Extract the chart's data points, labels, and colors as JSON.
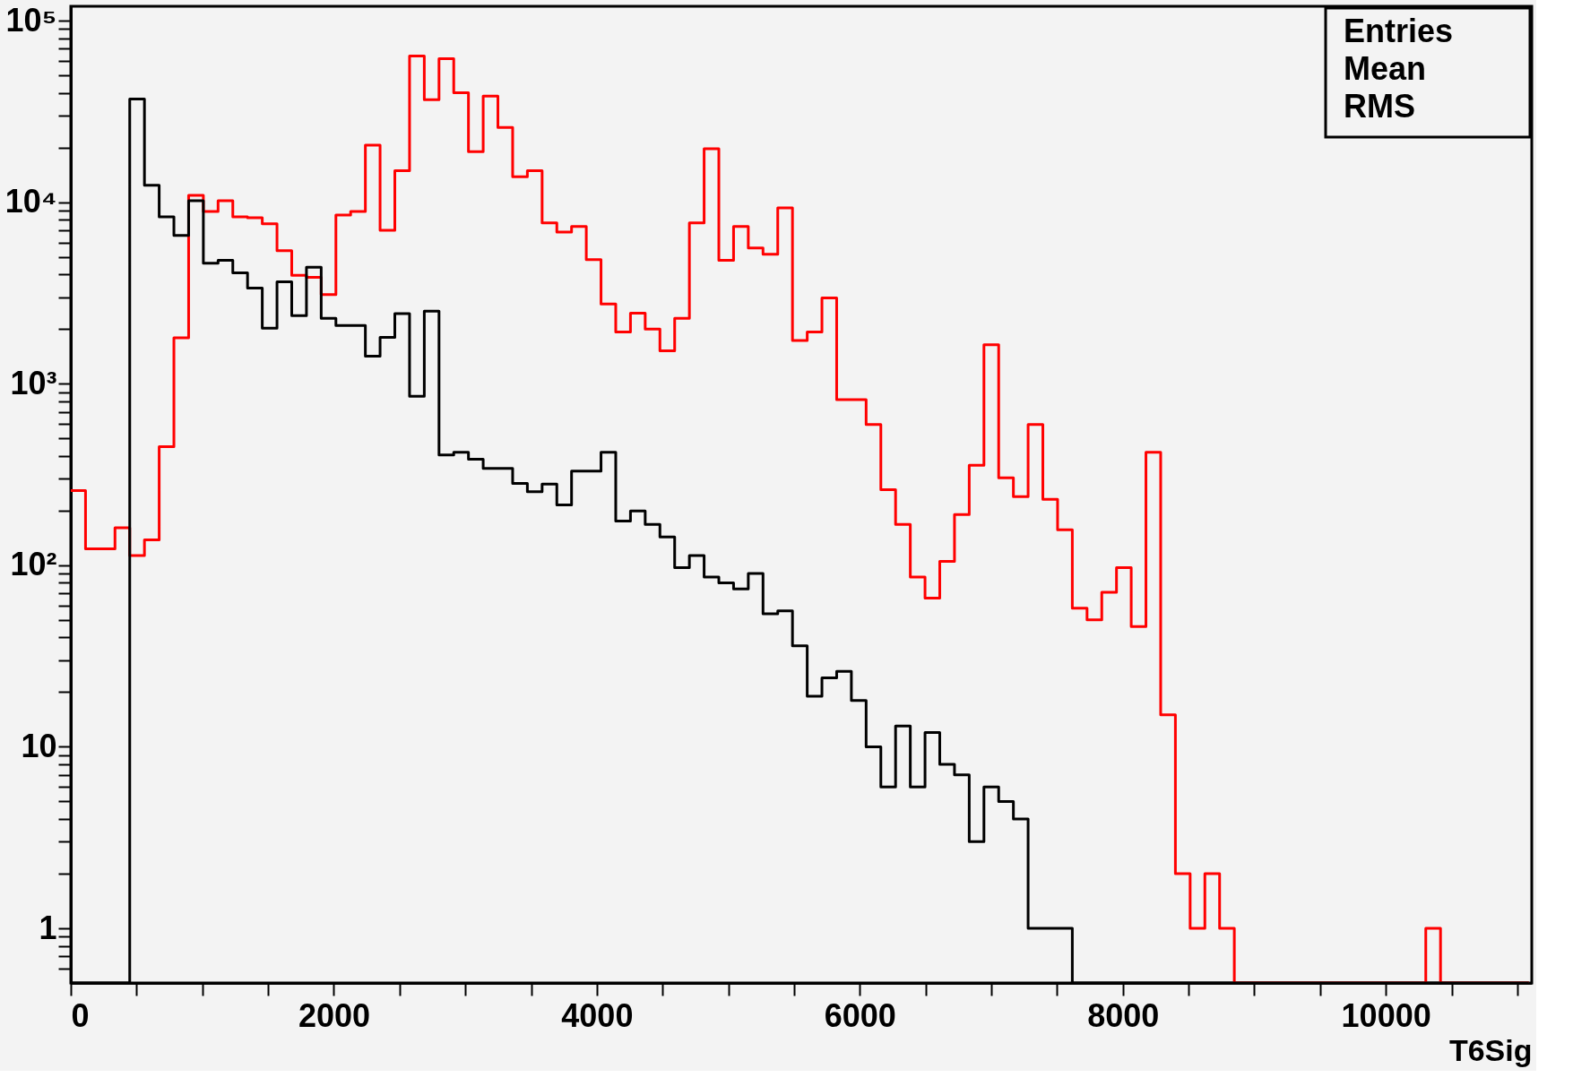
{
  "chart_data": {
    "type": "histogram",
    "xlabel": "T6Sig",
    "log": true,
    "grid": false,
    "bins": [
      0,
      112,
      224,
      336,
      448,
      560,
      672,
      784,
      896,
      1008,
      1120,
      1232,
      1344,
      1456,
      1568,
      1680,
      1792,
      1904,
      2016,
      2128,
      2240,
      2352,
      2464,
      2576,
      2688,
      2800,
      2912,
      3024,
      3136,
      3248,
      3360,
      3472,
      3584,
      3696,
      3808,
      3920,
      4032,
      4144,
      4256,
      4368,
      4480,
      4592,
      4704,
      4816,
      4928,
      5040,
      5152,
      5264,
      5376,
      5488,
      5600,
      5712,
      5824,
      5936,
      6048,
      6160,
      6272,
      6384,
      6496,
      6608,
      6720,
      6832,
      6944,
      7056,
      7168,
      7280,
      7392,
      7504,
      7616,
      7728,
      7840,
      7952,
      8064,
      8176,
      8288,
      8400,
      8512,
      8624,
      8736,
      8848,
      8960,
      9072,
      9184,
      9296,
      9408,
      9520,
      9632,
      9744,
      9856,
      9968,
      10080,
      10192,
      10304,
      10416,
      10528,
      10640,
      10752,
      10864,
      10976,
      11088
    ],
    "series": [
      {
        "color": "#ff0000",
        "values": [
          258,
          123,
          123,
          161,
          113,
          138,
          450,
          1790,
          10900,
          8900,
          10200,
          8300,
          8200,
          7600,
          5400,
          3950,
          3850,
          3100,
          8500,
          8900,
          20600,
          7000,
          14900,
          63900,
          36700,
          61700,
          40100,
          19000,
          38400,
          25800,
          13800,
          14900,
          7700,
          6850,
          7350,
          4820,
          2750,
          1930,
          2450,
          2000,
          1520,
          2290,
          7700,
          19700,
          4780,
          7350,
          5600,
          5170,
          9300,
          1730,
          1930,
          2970,
          817,
          817,
          596,
          261,
          168,
          86,
          66,
          105,
          190,
          355,
          1640,
          303,
          239,
          596,
          231,
          157,
          58,
          50,
          71,
          97,
          46,
          419,
          15,
          2,
          1,
          2,
          1,
          null,
          null,
          null,
          null,
          null,
          null,
          null,
          null,
          null,
          null,
          null,
          null,
          null,
          1,
          null,
          null,
          null,
          null,
          null,
          null
        ]
      },
      {
        "color": "#000000",
        "values": [
          null,
          null,
          null,
          null,
          37000,
          12400,
          8300,
          6560,
          10200,
          4610,
          4780,
          4080,
          3360,
          2020,
          3640,
          2370,
          4380,
          2290,
          2090,
          2090,
          1420,
          1800,
          2430,
          853,
          2510,
          405,
          419,
          384,
          342,
          342,
          282,
          254,
          280,
          215,
          330,
          330,
          419,
          175,
          199,
          168,
          143,
          97,
          113,
          86,
          80,
          74,
          90,
          54,
          56,
          36,
          19,
          24,
          26,
          18,
          10,
          6,
          13,
          6,
          12,
          8,
          7,
          3,
          6,
          5,
          4,
          1,
          1,
          1,
          null,
          null,
          null,
          null,
          null,
          null,
          null,
          null,
          null,
          null,
          null,
          null,
          null,
          null,
          null,
          null,
          null,
          null,
          null,
          null,
          null,
          null,
          null,
          null,
          null,
          null,
          null,
          null,
          null,
          null,
          null
        ]
      }
    ],
    "xlim": [
      0,
      11110
    ],
    "xticks": [
      0,
      {
        "value": 500,
        "label": null
      },
      {
        "value": 1000,
        "label": null
      },
      {
        "value": 1500,
        "label": null
      },
      2000,
      {
        "value": 2500,
        "label": null
      },
      {
        "value": 3000,
        "label": null
      },
      {
        "value": 3500,
        "label": null
      },
      4000,
      {
        "value": 4500,
        "label": null
      },
      {
        "value": 5000,
        "label": null
      },
      {
        "value": 5500,
        "label": null
      },
      6000,
      {
        "value": 6500,
        "label": null
      },
      {
        "value": 7000,
        "label": null
      },
      {
        "value": 7500,
        "label": null
      },
      8000,
      {
        "value": 8500,
        "label": null
      },
      {
        "value": 9000,
        "label": null
      },
      {
        "value": 9500,
        "label": null
      },
      10000,
      {
        "value": 10500,
        "label": null
      },
      {
        "value": 11000,
        "label": null
      }
    ],
    "ylim": [
      0.5,
      120000
    ],
    "yticks": [
      {
        "value": 0.6,
        "label": null
      },
      {
        "value": 0.7,
        "label": null
      },
      {
        "value": 0.8,
        "label": null
      },
      {
        "value": 0.9,
        "label": null
      },
      1,
      {
        "value": 2,
        "label": null
      },
      {
        "value": 3,
        "label": null
      },
      {
        "value": 4,
        "label": null
      },
      {
        "value": 5,
        "label": null
      },
      {
        "value": 6,
        "label": null
      },
      {
        "value": 7,
        "label": null
      },
      {
        "value": 8,
        "label": null
      },
      {
        "value": 9,
        "label": null
      },
      10,
      {
        "value": 20,
        "label": null
      },
      {
        "value": 30,
        "label": null
      },
      {
        "value": 40,
        "label": null
      },
      {
        "value": 50,
        "label": null
      },
      {
        "value": 60,
        "label": null
      },
      {
        "value": 70,
        "label": null
      },
      {
        "value": 80,
        "label": null
      },
      {
        "value": 90,
        "label": null
      },
      {
        "value": 100,
        "label": "10²"
      },
      {
        "value": 200,
        "label": null
      },
      {
        "value": 300,
        "label": null
      },
      {
        "value": 400,
        "label": null
      },
      {
        "value": 500,
        "label": null
      },
      {
        "value": 600,
        "label": null
      },
      {
        "value": 700,
        "label": null
      },
      {
        "value": 800,
        "label": null
      },
      {
        "value": 900,
        "label": null
      },
      {
        "value": 1000,
        "label": "10³"
      },
      {
        "value": 2000,
        "label": null
      },
      {
        "value": 3000,
        "label": null
      },
      {
        "value": 4000,
        "label": null
      },
      {
        "value": 5000,
        "label": null
      },
      {
        "value": 6000,
        "label": null
      },
      {
        "value": 7000,
        "label": null
      },
      {
        "value": 8000,
        "label": null
      },
      {
        "value": 9000,
        "label": null
      },
      {
        "value": 10000,
        "label": "10⁴"
      },
      {
        "value": 20000,
        "label": null
      },
      {
        "value": 30000,
        "label": null
      },
      {
        "value": 40000,
        "label": null
      },
      {
        "value": 50000,
        "label": null
      },
      {
        "value": 60000,
        "label": null
      },
      {
        "value": 70000,
        "label": null
      },
      {
        "value": 80000,
        "label": null
      },
      {
        "value": 90000,
        "label": null
      },
      {
        "value": 100000,
        "label": "10⁵"
      }
    ],
    "annotations": [
      "Entries",
      "Mean",
      "RMS"
    ]
  }
}
